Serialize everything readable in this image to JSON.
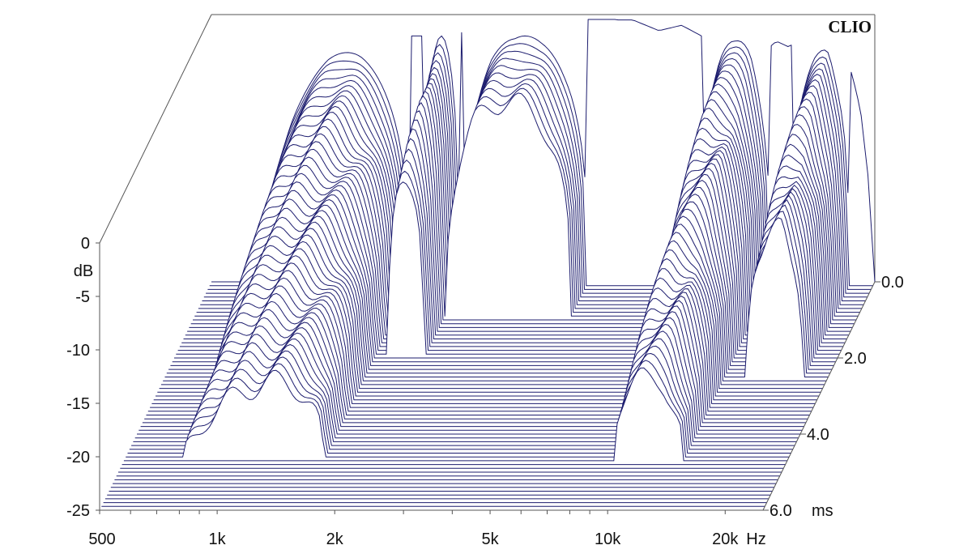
{
  "chart_data": {
    "type": "area",
    "brand": "CLIO",
    "ylabel": "dB",
    "y_ticks": [
      "0",
      "-5",
      "-10",
      "-15",
      "-20",
      "-25"
    ],
    "ylim": [
      -25,
      0
    ],
    "x_scale": "log",
    "x_ticks": [
      {
        "label": "500",
        "hz": 500
      },
      {
        "label": "1k",
        "hz": 1000
      },
      {
        "label": "2k",
        "hz": 2000
      },
      {
        "label": "5k",
        "hz": 5000
      },
      {
        "label": "10k",
        "hz": 10000
      },
      {
        "label": "20k",
        "hz": 20000
      }
    ],
    "x_unit": "Hz",
    "xlim": [
      500,
      25000
    ],
    "z_ticks": [
      {
        "label": "0.0",
        "ms": 0.0
      },
      {
        "label": "2.0",
        "ms": 2.0
      },
      {
        "label": "4.0",
        "ms": 4.0
      },
      {
        "label": "6.0",
        "ms": 6.0
      }
    ],
    "z_unit": "ms",
    "zlim": [
      0,
      6
    ],
    "colors": {
      "line": "#1c1c6e",
      "fill": "#ffffff",
      "axis": "#555555"
    },
    "initial_response": {
      "freq_hz": [
        700,
        800,
        1000,
        1200,
        1400,
        1600,
        2000,
        2300,
        2600,
        3000,
        3500,
        4000,
        4500,
        5000,
        5500,
        6000,
        7000,
        8000,
        9000,
        10000,
        11000,
        12000,
        13000,
        14000,
        15000,
        16000,
        17000,
        18000,
        19000,
        20000,
        21000,
        22000,
        23000,
        24000
      ],
      "db": [
        -8,
        -6,
        -4,
        -3,
        -2.5,
        -2,
        -2,
        -1.5,
        -1,
        -2,
        -2,
        -1.5,
        -0.5,
        0,
        -0.5,
        -0.5,
        -1.5,
        -1,
        -2,
        -2,
        -2.5,
        -2,
        -3.5,
        -2.5,
        -3,
        -2.5,
        -3.5,
        -3.5,
        -3,
        -4,
        -3.5,
        -6,
        -9,
        -15
      ]
    },
    "decay_regions": [
      {
        "from_hz": 700,
        "to_hz": 1600,
        "until_ms": 4.6
      },
      {
        "from_hz": 1750,
        "to_hz": 2150,
        "until_ms": 1.9
      },
      {
        "from_hz": 2200,
        "to_hz": 4600,
        "until_ms": 0.9
      },
      {
        "from_hz": 9000,
        "to_hz": 13500,
        "until_ms": 4.7
      },
      {
        "from_hz": 15500,
        "to_hz": 21500,
        "until_ms": 2.5
      }
    ]
  }
}
